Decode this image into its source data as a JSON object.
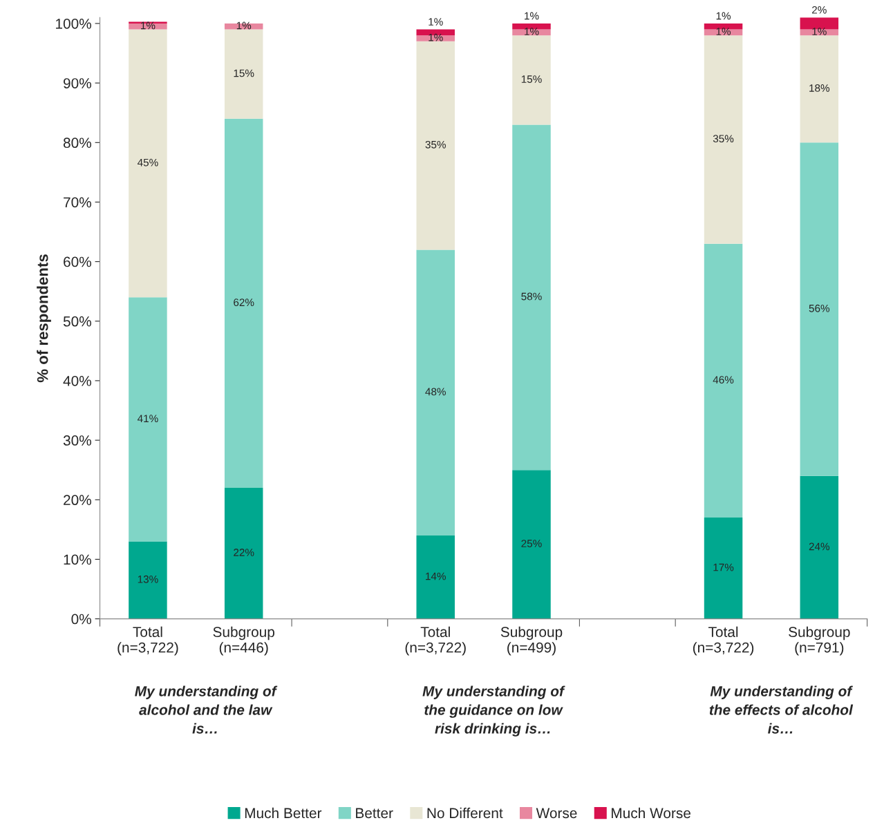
{
  "chart_data": {
    "type": "bar",
    "stacked": true,
    "ylabel": "% of respondents",
    "categories": [
      "Total\n(n=3,722)",
      "Subgroup\n(n=446)",
      null,
      "Total\n(n=3,722)",
      "Subgroup\n(n=499)",
      null,
      "Total\n(n=3,722)",
      "Subgroup\n(n=791)"
    ],
    "series": [
      {
        "name": "Much Better",
        "color": "#00a88f",
        "values": [
          13,
          22,
          null,
          14,
          25,
          null,
          17,
          24
        ],
        "value_labels": [
          "13%",
          "22%",
          null,
          "14%",
          "25%",
          null,
          "17%",
          "24%"
        ]
      },
      {
        "name": "Better",
        "color": "#80d5c6",
        "values": [
          41,
          62,
          null,
          48,
          58,
          null,
          46,
          56
        ],
        "value_labels": [
          "41%",
          "62%",
          null,
          "48%",
          "58%",
          null,
          "46%",
          "56%"
        ]
      },
      {
        "name": "No Different",
        "color": "#e8e6d4",
        "values": [
          45,
          15,
          null,
          35,
          15,
          null,
          35,
          18
        ],
        "value_labels": [
          "45%",
          "15%",
          null,
          "35%",
          "15%",
          null,
          "35%",
          "18%"
        ]
      },
      {
        "name": "Worse",
        "color": "#e8879f",
        "values": [
          1,
          1,
          null,
          1,
          1,
          null,
          1,
          1
        ],
        "value_labels": [
          "1%",
          "1%",
          null,
          "1%",
          "1%",
          null,
          "1%",
          "1%"
        ]
      },
      {
        "name": "Much Worse",
        "color": "#d8124e",
        "values": [
          0.3,
          0,
          null,
          1,
          1,
          null,
          1,
          2
        ],
        "value_labels": [
          null,
          null,
          null,
          "1%",
          "1%",
          null,
          "1%",
          "2%"
        ]
      }
    ],
    "ylim": [
      0,
      101
    ],
    "yticks": [
      {
        "value": 0,
        "label": "0%"
      },
      {
        "value": 10,
        "label": "10%"
      },
      {
        "value": 20,
        "label": "20%"
      },
      {
        "value": 30,
        "label": "30%"
      },
      {
        "value": 40,
        "label": "40%"
      },
      {
        "value": 50,
        "label": "50%"
      },
      {
        "value": 60,
        "label": "60%"
      },
      {
        "value": 70,
        "label": "70%"
      },
      {
        "value": 80,
        "label": "80%"
      },
      {
        "value": 90,
        "label": "90%"
      },
      {
        "value": 100,
        "label": "100%"
      }
    ],
    "annotations": [
      "My understanding of\nalcohol and the law\nis…",
      "My understanding of\nthe guidance on low\nrisk drinking is…",
      "My understanding of\nthe effects of alcohol\nis…"
    ],
    "grid": false,
    "legend": "bottom"
  }
}
